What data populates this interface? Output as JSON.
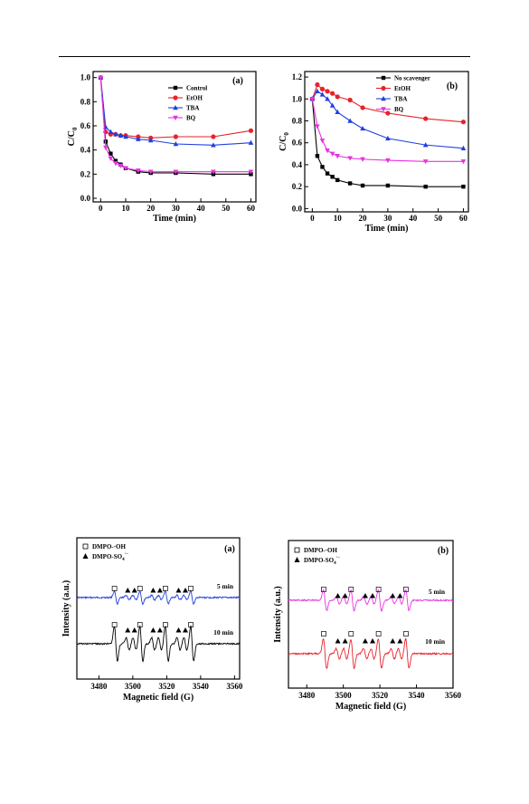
{
  "chart_data": [
    {
      "type": "line",
      "panel": "(a)",
      "xlabel": "Time (min)",
      "ylabel": "C/C",
      "ylabel_sub": "0",
      "xlim": [
        -3,
        62
      ],
      "ylim": [
        -0.03,
        1.05
      ],
      "xticks": [
        0,
        10,
        20,
        30,
        40,
        50,
        60
      ],
      "yticks": [
        0.0,
        0.2,
        0.4,
        0.6,
        0.8,
        1.0
      ],
      "ytick_decimals": 1,
      "legend_position": "top-right",
      "series": [
        {
          "name": "Control",
          "color": "#000000",
          "marker": "square",
          "x": [
            0,
            2,
            4,
            6,
            8,
            10,
            15,
            20,
            30,
            45,
            60
          ],
          "y": [
            1.0,
            0.47,
            0.37,
            0.31,
            0.28,
            0.25,
            0.22,
            0.21,
            0.21,
            0.2,
            0.2
          ]
        },
        {
          "name": "EtOH",
          "color": "#e8222a",
          "marker": "circle",
          "x": [
            0,
            2,
            4,
            6,
            8,
            10,
            15,
            20,
            30,
            45,
            60
          ],
          "y": [
            1.0,
            0.55,
            0.53,
            0.53,
            0.52,
            0.52,
            0.51,
            0.5,
            0.51,
            0.51,
            0.56
          ]
        },
        {
          "name": "TBA",
          "color": "#1f3fe0",
          "marker": "triangle-up",
          "x": [
            0,
            2,
            4,
            6,
            8,
            10,
            15,
            20,
            30,
            45,
            60
          ],
          "y": [
            1.0,
            0.59,
            0.55,
            0.53,
            0.52,
            0.51,
            0.49,
            0.48,
            0.45,
            0.44,
            0.46
          ]
        },
        {
          "name": "BQ",
          "color": "#e833e0",
          "marker": "triangle-down",
          "x": [
            0,
            2,
            4,
            6,
            8,
            10,
            15,
            20,
            30,
            45,
            60
          ],
          "y": [
            1.0,
            0.42,
            0.33,
            0.29,
            0.27,
            0.25,
            0.23,
            0.22,
            0.22,
            0.22,
            0.22
          ]
        }
      ]
    },
    {
      "type": "line",
      "panel": "(b)",
      "xlabel": "Time (min)",
      "ylabel": "C/C",
      "ylabel_sub": "0",
      "xlim": [
        -3,
        62
      ],
      "ylim": [
        -0.03,
        1.25
      ],
      "xticks": [
        0,
        10,
        20,
        30,
        40,
        50,
        60
      ],
      "yticks": [
        0.0,
        0.2,
        0.4,
        0.6,
        0.8,
        1.0,
        1.2
      ],
      "ytick_decimals": 1,
      "legend_position": "top-right",
      "series": [
        {
          "name": "No scavenger",
          "color": "#000000",
          "marker": "square",
          "x": [
            0,
            2,
            4,
            6,
            8,
            10,
            15,
            20,
            30,
            45,
            60
          ],
          "y": [
            1.0,
            0.48,
            0.38,
            0.32,
            0.29,
            0.26,
            0.23,
            0.21,
            0.21,
            0.2,
            0.2
          ]
        },
        {
          "name": "EtOH",
          "color": "#e8222a",
          "marker": "circle",
          "x": [
            0,
            2,
            4,
            6,
            8,
            10,
            15,
            20,
            30,
            45,
            60
          ],
          "y": [
            1.0,
            1.13,
            1.09,
            1.07,
            1.05,
            1.02,
            0.99,
            0.92,
            0.87,
            0.82,
            0.79
          ]
        },
        {
          "name": "TBA",
          "color": "#1f3fe0",
          "marker": "triangle-up",
          "x": [
            0,
            2,
            4,
            6,
            8,
            10,
            15,
            20,
            30,
            45,
            60
          ],
          "y": [
            1.0,
            1.07,
            1.04,
            1.0,
            0.94,
            0.88,
            0.8,
            0.73,
            0.64,
            0.58,
            0.55
          ]
        },
        {
          "name": "BQ",
          "color": "#e833e0",
          "marker": "triangle-down",
          "x": [
            0,
            2,
            4,
            6,
            8,
            10,
            15,
            20,
            30,
            45,
            60
          ],
          "y": [
            1.0,
            0.75,
            0.62,
            0.53,
            0.5,
            0.48,
            0.46,
            0.45,
            0.44,
            0.43,
            0.43
          ]
        }
      ]
    },
    {
      "type": "line",
      "panel": "(a)",
      "xlabel": "Magnetic field (G)",
      "ylabel": "Intensity (a.u.)",
      "xlim": [
        3467,
        3563
      ],
      "xticks": [
        3480,
        3500,
        3520,
        3540,
        3560
      ],
      "legend_position": "top-left",
      "legend": [
        {
          "symbol": "□",
          "label": "DMPO-·OH"
        },
        {
          "symbol": "▲",
          "label": "DMPO-SO",
          "sub": "4",
          "sup": "·−"
        }
      ],
      "series": [
        {
          "name": "5 min",
          "color": "#1f3fe0",
          "baseline": 0.0,
          "amplitude": 0.18
        },
        {
          "name": "10 min",
          "color": "#000000",
          "baseline": -1.0,
          "amplitude": 0.5
        }
      ],
      "peaks_oh": [
        3490,
        3505,
        3520,
        3535
      ],
      "peaks_so4": [
        3497,
        3501,
        3512,
        3516,
        3527,
        3531
      ]
    },
    {
      "type": "line",
      "panel": "(b)",
      "xlabel": "Magnetic field (G)",
      "ylabel": "Intensity (a.u.)",
      "xlim": [
        3470,
        3560
      ],
      "xticks": [
        3480,
        3500,
        3520,
        3540,
        3560
      ],
      "legend_position": "top-left",
      "legend": [
        {
          "symbol": "□",
          "label": "DMPO-·OH"
        },
        {
          "symbol": "▲",
          "label": "DMPO-SO",
          "sub": "4",
          "sup": "·−"
        }
      ],
      "series": [
        {
          "name": "5 min",
          "color": "#e833e0",
          "baseline": 0.0,
          "amplitude": 0.3
        },
        {
          "name": "10 min",
          "color": "#e8222a",
          "baseline": -1.0,
          "amplitude": 0.42
        }
      ],
      "peaks_oh": [
        3490,
        3505,
        3520,
        3535
      ],
      "peaks_so4": [
        3497,
        3501,
        3512,
        3516,
        3527,
        3531
      ]
    }
  ]
}
